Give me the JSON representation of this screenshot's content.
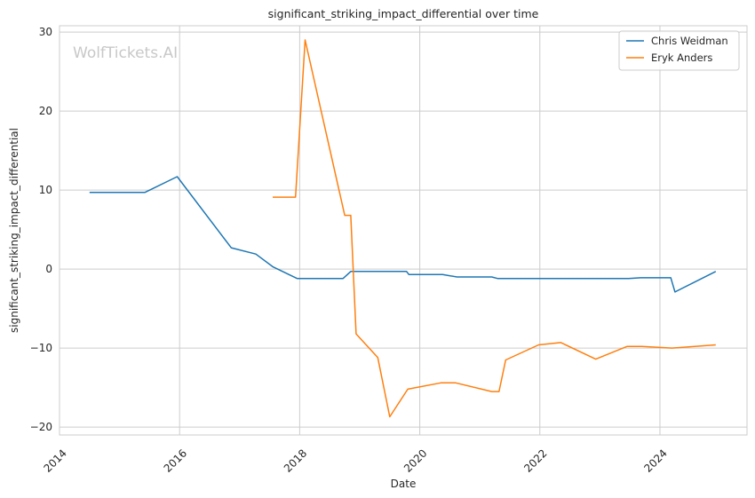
{
  "chart_data": {
    "type": "line",
    "title": "significant_striking_impact_differential over time",
    "xlabel": "Date",
    "ylabel": "significant_striking_impact_differential",
    "watermark": "WolfTickets.AI",
    "xlim": [
      2014.0,
      2025.45
    ],
    "ylim": [
      -21.0,
      30.8
    ],
    "xticks": [
      2014,
      2016,
      2018,
      2020,
      2022,
      2024
    ],
    "xtick_labels": [
      "2014",
      "2016",
      "2018",
      "2020",
      "2022",
      "2024"
    ],
    "yticks": [
      -20,
      -10,
      0,
      10,
      20,
      30
    ],
    "ytick_labels": [
      "−20",
      "−10",
      "0",
      "10",
      "20",
      "30"
    ],
    "grid": true,
    "legend_position": "top-right",
    "series": [
      {
        "name": "Chris Weidman",
        "color": "#1f77b4",
        "x": [
          2014.5,
          2015.42,
          2015.96,
          2016.86,
          2017.27,
          2017.55,
          2017.96,
          2018.72,
          2018.85,
          2019.78,
          2019.82,
          2020.38,
          2020.62,
          2021.2,
          2021.3,
          2023.48,
          2023.68,
          2024.18,
          2024.25,
          2024.93
        ],
        "y": [
          9.7,
          9.7,
          11.7,
          2.7,
          1.9,
          0.3,
          -1.2,
          -1.2,
          -0.3,
          -0.3,
          -0.7,
          -0.7,
          -1.0,
          -1.0,
          -1.2,
          -1.2,
          -1.1,
          -1.1,
          -2.9,
          -0.3
        ]
      },
      {
        "name": "Eryk Anders",
        "color": "#ff7f0e",
        "x": [
          2017.55,
          2017.93,
          2018.09,
          2018.75,
          2018.85,
          2018.94,
          2019.3,
          2019.5,
          2019.8,
          2020.35,
          2020.6,
          2021.2,
          2021.32,
          2021.43,
          2021.98,
          2022.35,
          2022.93,
          2023.45,
          2023.7,
          2024.2,
          2024.93
        ],
        "y": [
          9.1,
          9.1,
          29.0,
          6.8,
          6.8,
          -8.2,
          -11.2,
          -18.7,
          -15.2,
          -14.4,
          -14.4,
          -15.5,
          -15.5,
          -11.5,
          -9.6,
          -9.3,
          -11.4,
          -9.8,
          -9.8,
          -10.0,
          -9.6
        ]
      }
    ]
  }
}
